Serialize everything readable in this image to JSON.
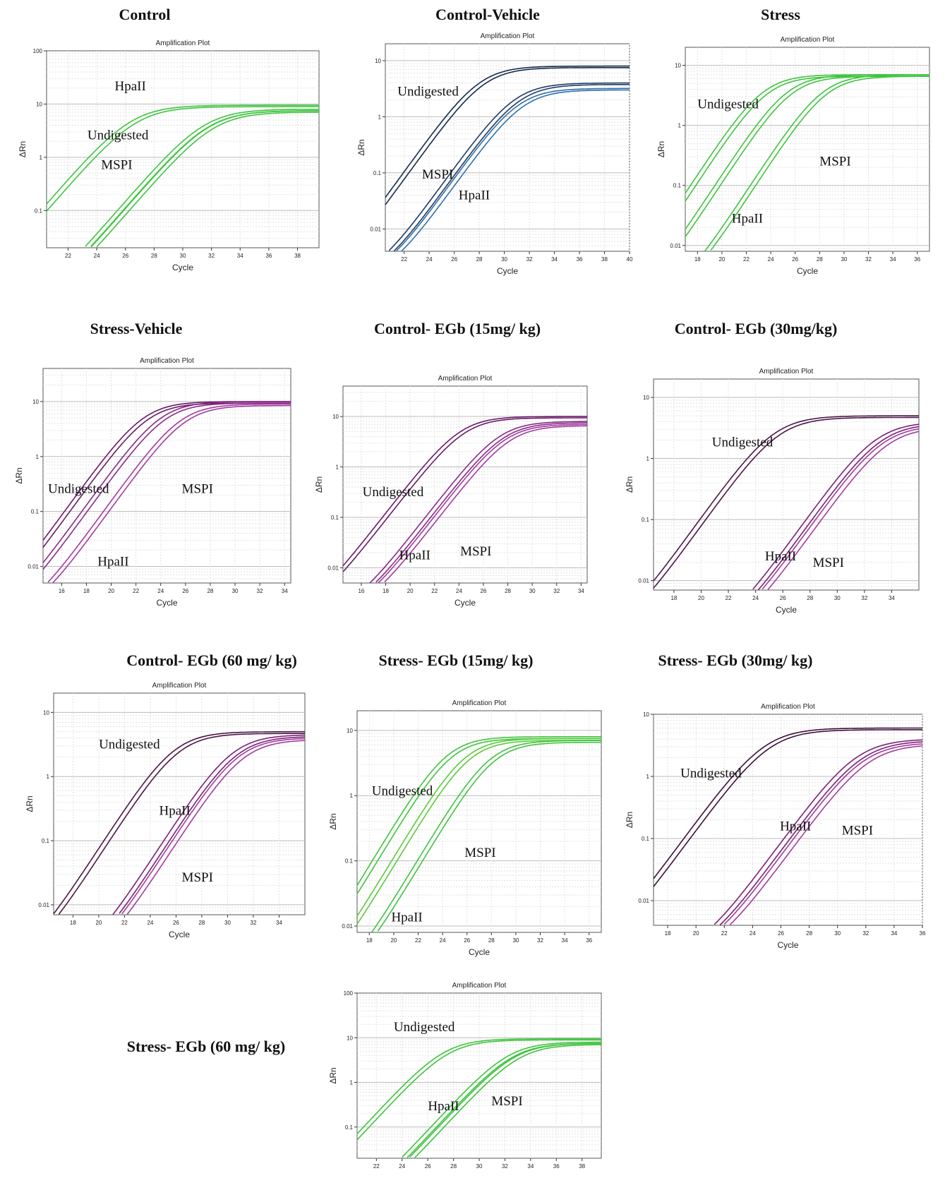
{
  "panels": [
    {
      "title": "Control",
      "chart_data": {
        "type": "line",
        "title": "Amplification Plot",
        "xlabel": "Cycle",
        "ylabel": "ΔRn",
        "y_scale": "log",
        "ylim": [
          0.02,
          100
        ],
        "xlim": [
          20.5,
          39.5
        ],
        "x_ticks": [
          22,
          24,
          26,
          28,
          30,
          32,
          34,
          36,
          38
        ],
        "y_ticks": [
          0.1,
          1,
          10,
          100
        ],
        "series": [
          {
            "name": "Undigested",
            "color": "#3ec43e",
            "ct": 26.6,
            "plateau": 9.5,
            "lines": 2
          },
          {
            "name": "HpaII",
            "color": "#3ec43e",
            "ct": 31.7,
            "plateau": 8,
            "lines": 2
          },
          {
            "name": "MSPI",
            "color": "#3ec43e",
            "ct": 32.0,
            "plateau": 7.5,
            "lines": 2
          }
        ],
        "annotations": [
          "Undigested",
          "HpaII",
          "MSPI"
        ]
      }
    },
    {
      "title": "Control-Vehicle",
      "chart_data": {
        "type": "line",
        "title": "Amplification Plot",
        "xlabel": "Cycle",
        "ylabel": "ΔRn",
        "y_scale": "log",
        "ylim": [
          0.004,
          20
        ],
        "xlim": [
          20.5,
          40
        ],
        "x_ticks": [
          22,
          24,
          26,
          28,
          30,
          32,
          34,
          36,
          38,
          40
        ],
        "y_ticks": [
          0.01,
          0.1,
          1,
          10
        ],
        "series": [
          {
            "name": "Undigested",
            "color": "#152a4a",
            "ct": 28.2,
            "plateau": 8,
            "lines": 2
          },
          {
            "name": "HpaII",
            "color": "#1f3a66",
            "ct": 31.0,
            "plateau": 4,
            "lines": 2
          },
          {
            "name": "MSPI",
            "color": "#2f6fa8",
            "ct": 31.3,
            "plateau": 3.2,
            "lines": 2
          }
        ],
        "annotations": [
          "Undigested",
          "HpaII",
          "MSPI"
        ]
      }
    },
    {
      "title": "Stress",
      "chart_data": {
        "type": "line",
        "title": "Amplification Plot",
        "xlabel": "Cycle",
        "ylabel": "ΔRn",
        "y_scale": "log",
        "ylim": [
          0.008,
          20
        ],
        "xlim": [
          17,
          37
        ],
        "x_ticks": [
          18,
          20,
          22,
          24,
          26,
          28,
          30,
          32,
          34,
          36
        ],
        "y_ticks": [
          0.01,
          0.1,
          1,
          10
        ],
        "series": [
          {
            "name": "Undigested",
            "color": "#3ec43e",
            "ct": 23.5,
            "plateau": 7,
            "lines": 2
          },
          {
            "name": "HpaII",
            "color": "#3ec43e",
            "ct": 25.5,
            "plateau": 7,
            "lines": 2
          },
          {
            "name": "MSPI",
            "color": "#3ec43e",
            "ct": 28.4,
            "plateau": 7,
            "lines": 2
          }
        ],
        "annotations": [
          "Undigested",
          "MSPI",
          "HpaII"
        ]
      }
    },
    {
      "title": "Stress-Vehicle",
      "chart_data": {
        "type": "line",
        "title": "Amplification Plot",
        "xlabel": "Cycle",
        "ylabel": "ΔRn",
        "y_scale": "log",
        "ylim": [
          0.005,
          40
        ],
        "xlim": [
          14.5,
          34.5
        ],
        "x_ticks": [
          16,
          18,
          20,
          22,
          24,
          26,
          28,
          30,
          32,
          34
        ],
        "y_ticks": [
          0.01,
          0.1,
          1,
          10
        ],
        "series": [
          {
            "name": "Undigested",
            "color": "#6a1a66",
            "ct": 22.8,
            "plateau": 10,
            "lines": 2
          },
          {
            "name": "HpaII",
            "color": "#8a2a86",
            "ct": 24.2,
            "plateau": 10,
            "lines": 2
          },
          {
            "name": "MSPI",
            "color": "#a33aa0",
            "ct": 25.8,
            "plateau": 9,
            "lines": 2
          }
        ],
        "annotations": [
          "Undigested",
          "MSPI",
          "HpaII"
        ]
      }
    },
    {
      "title": "Control- EGb (15mg/ kg)",
      "chart_data": {
        "type": "line",
        "title": "Amplification Plot",
        "xlabel": "Cycle",
        "ylabel": "ΔRn",
        "y_scale": "log",
        "ylim": [
          0.005,
          40
        ],
        "xlim": [
          14.5,
          34.5
        ],
        "x_ticks": [
          16,
          18,
          20,
          22,
          24,
          26,
          28,
          30,
          32,
          34
        ],
        "y_ticks": [
          0.01,
          0.1,
          1,
          10
        ],
        "series": [
          {
            "name": "Undigested",
            "color": "#6a1a66",
            "ct": 24.3,
            "plateau": 10,
            "lines": 2
          },
          {
            "name": "HpaII",
            "color": "#8a2a86",
            "ct": 27.5,
            "plateau": 8,
            "lines": 2
          },
          {
            "name": "MSPI",
            "color": "#a33aa0",
            "ct": 28.0,
            "plateau": 7,
            "lines": 2
          }
        ],
        "annotations": [
          "Undigested",
          "HpaII",
          "MSPI"
        ]
      }
    },
    {
      "title": "Control- EGb (30mg/kg)",
      "chart_data": {
        "type": "line",
        "title": "Amplification Plot",
        "xlabel": "Cycle",
        "ylabel": "ΔRn",
        "y_scale": "log",
        "ylim": [
          0.007,
          20
        ],
        "xlim": [
          16.5,
          36
        ],
        "x_ticks": [
          18,
          20,
          22,
          24,
          26,
          28,
          30,
          32,
          34
        ],
        "y_ticks": [
          0.01,
          0.1,
          1,
          10
        ],
        "series": [
          {
            "name": "Undigested",
            "color": "#4a1646",
            "ct": 25.5,
            "plateau": 5,
            "lines": 2
          },
          {
            "name": "HpaII",
            "color": "#7a2076",
            "ct": 33.0,
            "plateau": 4,
            "lines": 2
          },
          {
            "name": "MSPI",
            "color": "#a33aa0",
            "ct": 33.5,
            "plateau": 3.5,
            "lines": 2
          }
        ],
        "annotations": [
          "Undigested",
          "HpaII",
          "MSPI"
        ]
      }
    },
    {
      "title": "Control- EGb (60 mg/ kg)",
      "chart_data": {
        "type": "line",
        "title": "Amplification Plot",
        "xlabel": "Cycle",
        "ylabel": "ΔRn",
        "y_scale": "log",
        "ylim": [
          0.007,
          20
        ],
        "xlim": [
          16.5,
          36
        ],
        "x_ticks": [
          18,
          20,
          22,
          24,
          26,
          28,
          30,
          32,
          34
        ],
        "y_ticks": [
          0.01,
          0.1,
          1,
          10
        ],
        "series": [
          {
            "name": "Undigested",
            "color": "#4a1646",
            "ct": 26.0,
            "plateau": 5,
            "lines": 2
          },
          {
            "name": "HpaII",
            "color": "#7a2076",
            "ct": 30.5,
            "plateau": 4.5,
            "lines": 2
          },
          {
            "name": "MSPI",
            "color": "#a33aa0",
            "ct": 31.0,
            "plateau": 4,
            "lines": 2
          }
        ],
        "annotations": [
          "Undigested",
          "HpaII",
          "MSPI"
        ]
      }
    },
    {
      "title": "Stress- EGb (15mg/ kg)",
      "chart_data": {
        "type": "line",
        "title": "Amplification Plot",
        "xlabel": "Cycle",
        "ylabel": "ΔRn",
        "y_scale": "log",
        "ylim": [
          0.008,
          20
        ],
        "xlim": [
          17,
          37
        ],
        "x_ticks": [
          18,
          20,
          22,
          24,
          26,
          28,
          30,
          32,
          34,
          36
        ],
        "y_ticks": [
          0.01,
          0.1,
          1,
          10
        ],
        "series": [
          {
            "name": "Undigested",
            "color": "#3ec43e",
            "ct": 24.5,
            "plateau": 8,
            "lines": 2
          },
          {
            "name": "HpaII",
            "color": "#5acb3a",
            "ct": 26.0,
            "plateau": 7.5,
            "lines": 2
          },
          {
            "name": "MSPI",
            "color": "#3ec43e",
            "ct": 28.0,
            "plateau": 7,
            "lines": 2
          }
        ],
        "annotations": [
          "Undigested",
          "MSPI",
          "HpaII"
        ]
      }
    },
    {
      "title": "Stress- EGb (30mg/ kg)",
      "chart_data": {
        "type": "line",
        "title": "Amplification Plot",
        "xlabel": "Cycle",
        "ylabel": "ΔRn",
        "y_scale": "log",
        "ylim": [
          0.004,
          10
        ],
        "xlim": [
          17,
          36
        ],
        "x_ticks": [
          18,
          20,
          22,
          24,
          26,
          28,
          30,
          32,
          34,
          36
        ],
        "y_ticks": [
          0.01,
          0.1,
          1,
          10
        ],
        "series": [
          {
            "name": "Undigested",
            "color": "#3a1038",
            "ct": 25.0,
            "plateau": 6,
            "lines": 2
          },
          {
            "name": "HpaII",
            "color": "#7a2076",
            "ct": 31.5,
            "plateau": 4,
            "lines": 2
          },
          {
            "name": "MSPI",
            "color": "#a33aa0",
            "ct": 32.0,
            "plateau": 3.5,
            "lines": 2
          }
        ],
        "annotations": [
          "Undigested",
          "HpaII",
          "MSPI"
        ]
      }
    },
    {
      "title": "Stress- EGb (60 mg/ kg)",
      "chart_data": {
        "type": "line",
        "title": "Amplification Plot",
        "xlabel": "",
        "ylabel": "ΔRn",
        "y_scale": "log",
        "ylim": [
          0.02,
          100
        ],
        "xlim": [
          20.5,
          39.5
        ],
        "x_ticks": [
          22,
          24,
          26,
          28,
          30,
          32,
          34,
          36,
          38
        ],
        "y_ticks": [
          0.1,
          1,
          10,
          100
        ],
        "series": [
          {
            "name": "Undigested",
            "color": "#3ec43e",
            "ct": 27.5,
            "plateau": 9.5,
            "lines": 2
          },
          {
            "name": "HpaII",
            "color": "#3ec43e",
            "ct": 32.5,
            "plateau": 8,
            "lines": 2
          },
          {
            "name": "MSPI",
            "color": "#3ec43e",
            "ct": 33.0,
            "plateau": 7.5,
            "lines": 2
          }
        ],
        "annotations": [
          "Undigested",
          "HpaII",
          "MSPI"
        ]
      }
    }
  ]
}
